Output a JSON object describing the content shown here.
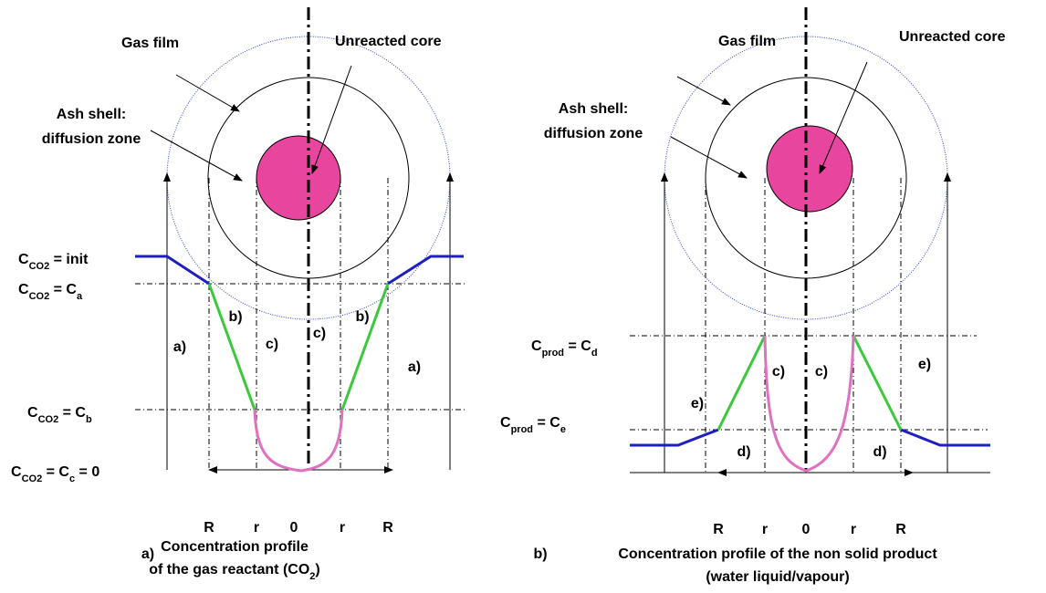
{
  "panels": [
    {
      "gas_film": "Gas film",
      "unreacted_core": "Unreacted core",
      "ash_shell": [
        "Ash shell:",
        "diffusion zone"
      ],
      "levels": [
        [
          "C",
          "CO2",
          " = init"
        ],
        [
          "C",
          "CO2",
          " = C",
          "a"
        ],
        [
          "C",
          "CO2",
          " = C",
          "b"
        ],
        [
          "C",
          "CO2",
          " = C",
          "c",
          " = 0"
        ]
      ],
      "zones": [
        "a)",
        "b)",
        "c)",
        "c)",
        "b)",
        "a)"
      ],
      "axis": [
        "R",
        "r",
        "0",
        "r",
        "R"
      ],
      "caption_letter": "a)",
      "caption": [
        [
          "Concentration profile"
        ],
        [
          "of the gas reactant (CO",
          "2",
          ")"
        ]
      ]
    },
    {
      "gas_film": "Gas film",
      "unreacted_core": "Unreacted core",
      "ash_shell": [
        "Ash shell:",
        "diffusion zone"
      ],
      "levels": [
        [
          "C",
          "prod",
          " = C",
          "d"
        ],
        [
          "C",
          "prod",
          " = C",
          "e"
        ]
      ],
      "zones": [
        "e)",
        "d)",
        "c)",
        "c)",
        "d)",
        "e)"
      ],
      "axis": [
        "R",
        "r",
        "0",
        "r",
        "R"
      ],
      "caption_letter": "b)",
      "caption": [
        [
          "Concentration profile of the non solid product"
        ],
        [
          "(water liquid/vapour)"
        ]
      ]
    }
  ]
}
